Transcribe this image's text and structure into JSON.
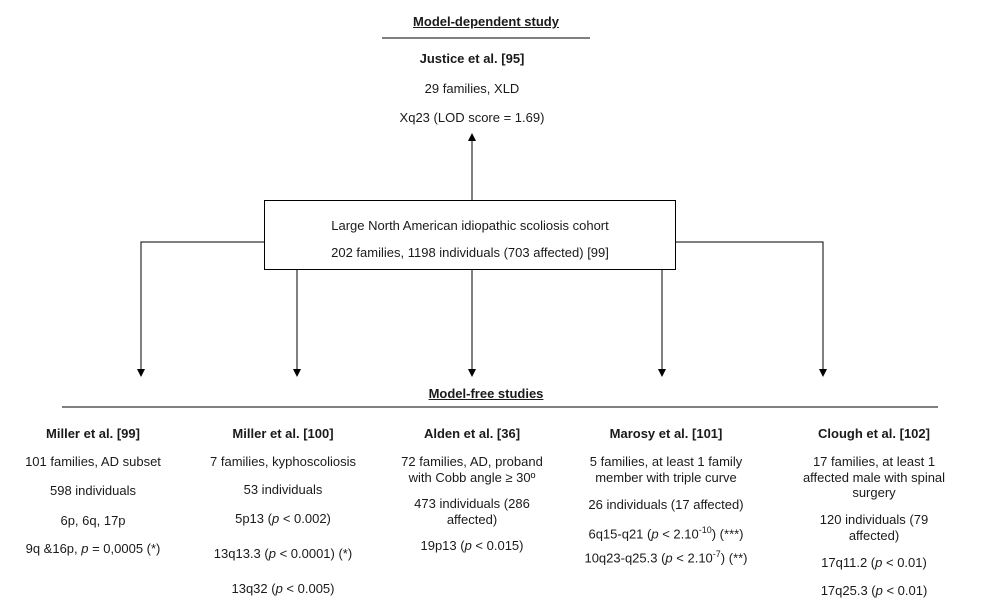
{
  "top": {
    "header": "Model-dependent study",
    "author": "Justice et al. [95]",
    "line1": "29 families, XLD",
    "line2": "Xq23 (LOD score = 1.69)"
  },
  "cohort": {
    "line1": "Large North American idiopathic scoliosis cohort",
    "line2": "202 families, 1198 individuals (703 affected) [99]"
  },
  "bottom_header": "Model-free studies",
  "studies": [
    {
      "author": "Miller et al. [99]",
      "l1": "101 families, AD subset",
      "l2": "598 individuals",
      "l3": "6p, 6q, 17p",
      "l4_pre": "9q &16p, ",
      "l4_p": "p",
      "l4_post": " = 0,0005 (*)"
    },
    {
      "author": "Miller et al. [100]",
      "l1": "7 families, kyphoscoliosis",
      "l2": "53 individuals",
      "l3_pre": "5p13 (",
      "l3_post": " < 0.002)",
      "l4_pre": "13q13.3 (",
      "l4_post": " < 0.0001) (*)",
      "l5_pre": "13q32 (",
      "l5_post": " < 0.005)",
      "p": "p"
    },
    {
      "author": "Alden et al. [36]",
      "l1": "72 families, AD, proband",
      "l2": "with Cobb angle ≥ 30º",
      "l3": "473 individuals (286",
      "l4": "affected)",
      "l5_pre": "19p13 (",
      "l5_post": " < 0.015)",
      "p": "p"
    },
    {
      "author": "Marosy et al. [101]",
      "l1": "5 families, at least 1 family",
      "l2": "member with triple curve",
      "l3": "26 individuals (17 affected)",
      "l4_pre": "6q15-q21 (",
      "l4_mid": " < 2.10",
      "l4_sup": "-10",
      "l4_post": ") (***)",
      "l5_pre": "10q23-q25.3 (",
      "l5_mid": " < 2.10",
      "l5_sup": "-7",
      "l5_post": ") (**)",
      "p": "p"
    },
    {
      "author": "Clough et al. [102]",
      "l1": "17 families, at least 1",
      "l2": "affected male with spinal",
      "l3": "surgery",
      "l4": "120 individuals (79",
      "l5": "affected)",
      "l6_pre": "17q11.2 (",
      "l6_post": " < 0.01)",
      "l7_pre": "17q25.3 (",
      "l7_post": " < 0.01)",
      "p": "p"
    }
  ]
}
